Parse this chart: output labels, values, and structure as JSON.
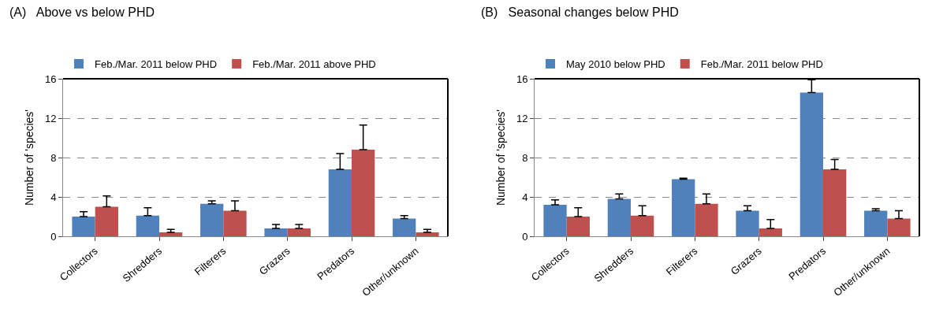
{
  "chart_data": [
    {
      "type": "bar",
      "title": "(A)   Above vs below PHD",
      "ylabel": "Number of 'species'",
      "categories": [
        "Collectors",
        "Shredders",
        "Filterers",
        "Grazers",
        "Predators",
        "Other/unknown"
      ],
      "series": [
        {
          "name": "Feb./Mar. 2011 below PHD",
          "color": "#4f81bd",
          "values": [
            2.0,
            2.1,
            3.3,
            0.8,
            6.8,
            1.8
          ],
          "errors": [
            [
              2.0,
              2.5
            ],
            [
              2.1,
              2.9
            ],
            [
              3.3,
              3.6
            ],
            [
              0.8,
              1.2
            ],
            [
              6.8,
              8.4
            ],
            [
              1.8,
              2.1
            ]
          ]
        },
        {
          "name": "Feb./Mar. 2011 above PHD",
          "color": "#c0504d",
          "values": [
            3.0,
            0.4,
            2.6,
            0.8,
            8.8,
            0.4
          ],
          "errors": [
            [
              3.0,
              4.1
            ],
            [
              0.4,
              0.7
            ],
            [
              2.6,
              3.6
            ],
            [
              0.8,
              1.2
            ],
            [
              8.8,
              11.3
            ],
            [
              0.4,
              0.7
            ]
          ]
        }
      ],
      "ylim": [
        0,
        16
      ],
      "yticks": [
        0,
        4,
        8,
        12,
        16
      ],
      "grid": "y",
      "legend": "top left"
    },
    {
      "type": "bar",
      "title": "(B)   Seasonal changes below PHD",
      "ylabel": "Number of 'species'",
      "categories": [
        "Collectors",
        "Shredders",
        "Filterers",
        "Grazers",
        "Predators",
        "Other/unknown"
      ],
      "series": [
        {
          "name": "May 2010 below PHD",
          "color": "#4f81bd",
          "values": [
            3.2,
            3.8,
            5.8,
            2.6,
            14.6,
            2.6
          ],
          "errors": [
            [
              3.2,
              3.7
            ],
            [
              3.8,
              4.3
            ],
            [
              5.8,
              5.9
            ],
            [
              2.6,
              3.1
            ],
            [
              14.6,
              15.9
            ],
            [
              2.6,
              2.8
            ]
          ]
        },
        {
          "name": "Feb./Mar. 2011 below PHD",
          "color": "#c0504d",
          "values": [
            2.0,
            2.1,
            3.3,
            0.8,
            6.8,
            1.8
          ],
          "errors": [
            [
              2.0,
              2.9
            ],
            [
              2.1,
              3.1
            ],
            [
              3.3,
              4.3
            ],
            [
              0.8,
              1.7
            ],
            [
              6.8,
              7.8
            ],
            [
              1.8,
              2.6
            ]
          ]
        }
      ],
      "ylim": [
        0,
        16
      ],
      "yticks": [
        0,
        4,
        8,
        12,
        16
      ],
      "grid": "y",
      "legend": "top left"
    }
  ]
}
